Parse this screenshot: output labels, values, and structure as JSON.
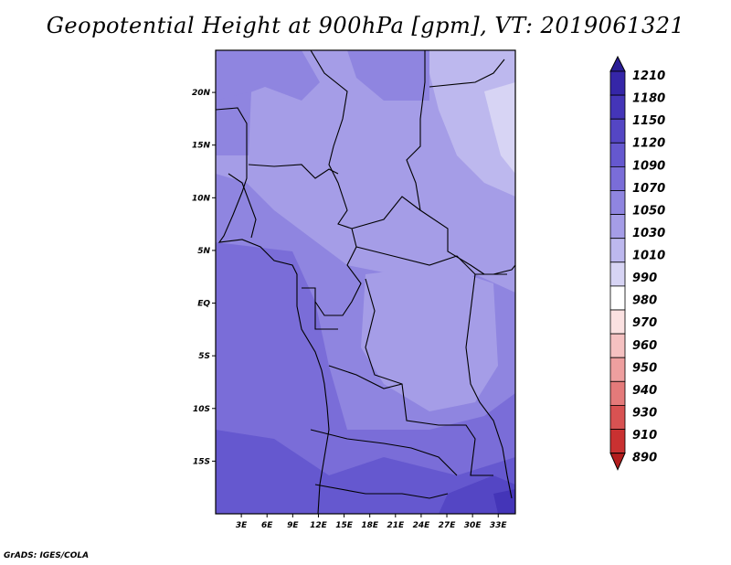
{
  "title": "Geopotential Height at 900hPa [gpm], VT: 2019061321",
  "footer": "GrADS: IGES/COLA",
  "map": {
    "lon_range": [
      0,
      35
    ],
    "lat_range": [
      -20,
      24
    ],
    "lon_ticks": [
      "3E",
      "6E",
      "9E",
      "12E",
      "15E",
      "18E",
      "21E",
      "24E",
      "27E",
      "30E",
      "33E"
    ],
    "lat_ticks": [
      "20N",
      "15N",
      "10N",
      "5N",
      "EQ",
      "5S",
      "10S",
      "15S"
    ]
  },
  "legend": {
    "levels": [
      "1210",
      "1180",
      "1150",
      "1120",
      "1090",
      "1070",
      "1050",
      "1030",
      "1010",
      "990",
      "980",
      "970",
      "960",
      "950",
      "940",
      "930",
      "910",
      "890"
    ],
    "colors": [
      "#2a1d96",
      "#3526a8",
      "#4435b8",
      "#5446c4",
      "#6558cf",
      "#7a6dd8",
      "#8f85e0",
      "#a59de7",
      "#bdb8ee",
      "#d7d4f4",
      "#ffffff",
      "#fbe1e1",
      "#f5c1c1",
      "#ee9f9f",
      "#e47a7a",
      "#d85252",
      "#c93131",
      "#b31d1d"
    ]
  }
}
